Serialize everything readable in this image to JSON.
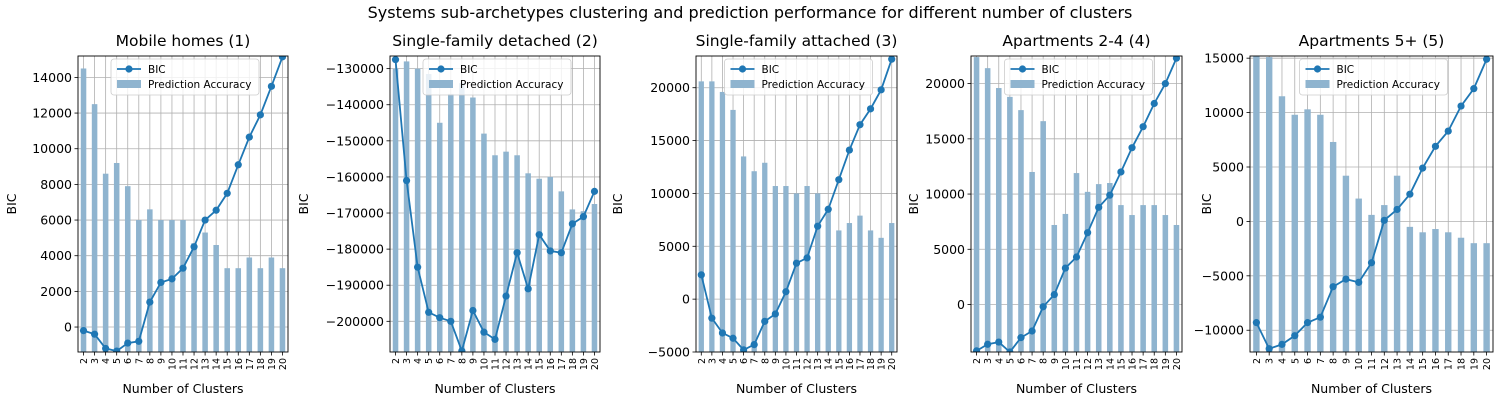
{
  "figure": {
    "suptitle": "Systems sub-archetypes clustering and prediction performance for different number of clusters"
  },
  "legend": {
    "line_label": "BIC",
    "bar_label": "Prediction Accuracy",
    "placement": "upper-center"
  },
  "colors": {
    "line": "#1f77b4",
    "bar": "#8fb4cf",
    "grid": "#b0b0b0"
  },
  "chart_data": [
    {
      "type": "bar+line",
      "title": "Mobile homes (1)",
      "xlabel": "Number of Clusters",
      "ylabel": "BIC",
      "categories": [
        "2",
        "3",
        "4",
        "5",
        "6",
        "7",
        "8",
        "9",
        "10",
        "11",
        "12",
        "13",
        "14",
        "15",
        "16",
        "17",
        "18",
        "19",
        "20"
      ],
      "ylim": [
        -1400,
        15200
      ],
      "yticks": [
        0,
        2000,
        4000,
        6000,
        8000,
        10000,
        12000,
        14000
      ],
      "ytick_labels": [
        "0",
        "2000",
        "4000",
        "6000",
        "8000",
        "10000",
        "12000",
        "14000"
      ],
      "grid": true,
      "series": [
        {
          "name": "BIC",
          "kind": "line",
          "values": [
            -200,
            -400,
            -1200,
            -1350,
            -900,
            -800,
            1400,
            2500,
            2700,
            3300,
            4500,
            6000,
            6550,
            7500,
            9100,
            10650,
            11900,
            13500,
            15150
          ]
        },
        {
          "name": "Prediction Accuracy",
          "kind": "bar",
          "values": [
            14500,
            12500,
            8600,
            9200,
            7900,
            6000,
            6600,
            6000,
            6000,
            6000,
            4700,
            5300,
            4600,
            3300,
            3300,
            3900,
            3300,
            3900,
            3300
          ]
        }
      ]
    },
    {
      "type": "bar+line",
      "title": "Single-family detached (2)",
      "xlabel": "Number of Clusters",
      "ylabel": "BIC",
      "categories": [
        "2",
        "3",
        "4",
        "5",
        "6",
        "7",
        "8",
        "9",
        "10",
        "11",
        "12",
        "13",
        "14",
        "15",
        "16",
        "17",
        "18",
        "19",
        "20"
      ],
      "ylim": [
        -208500,
        -126500
      ],
      "yticks": [
        -200000,
        -190000,
        -180000,
        -170000,
        -160000,
        -150000,
        -140000,
        -130000
      ],
      "ytick_labels": [
        "−200000",
        "−190000",
        "−180000",
        "−170000",
        "−160000",
        "−150000",
        "−140000",
        "−130000"
      ],
      "grid": true,
      "series": [
        {
          "name": "BIC",
          "kind": "line",
          "values": [
            -127500,
            -161000,
            -185000,
            -197500,
            -199000,
            -200000,
            -208200,
            -197000,
            -203000,
            -205000,
            -193000,
            -181000,
            -191000,
            -176000,
            -180500,
            -181000,
            -173000,
            -171000,
            -164000
          ]
        },
        {
          "name": "Prediction Accuracy",
          "kind": "bar",
          "values": [
            -130000,
            -128000,
            -130000,
            -131500,
            -145000,
            -137000,
            -134000,
            -138000,
            -148000,
            -154000,
            -153000,
            -154000,
            -159000,
            -160500,
            -160000,
            -164000,
            -169000,
            -169500,
            -167500
          ]
        }
      ]
    },
    {
      "type": "bar+line",
      "title": "Single-family attached (3)",
      "xlabel": "Number of Clusters",
      "ylabel": "BIC",
      "categories": [
        "2",
        "3",
        "4",
        "5",
        "6",
        "7",
        "8",
        "9",
        "10",
        "11",
        "12",
        "13",
        "14",
        "15",
        "16",
        "17",
        "18",
        "19",
        "20"
      ],
      "ylim": [
        -5000,
        23000
      ],
      "yticks": [
        -5000,
        0,
        5000,
        10000,
        15000,
        20000
      ],
      "ytick_labels": [
        "−5000",
        "0",
        "5000",
        "10000",
        "15000",
        "20000"
      ],
      "grid": true,
      "series": [
        {
          "name": "BIC",
          "kind": "line",
          "values": [
            2300,
            -1800,
            -3200,
            -3700,
            -4800,
            -4300,
            -2100,
            -1400,
            700,
            3400,
            3900,
            6900,
            8500,
            11300,
            14100,
            16500,
            18000,
            19800,
            22700
          ]
        },
        {
          "name": "Prediction Accuracy",
          "kind": "bar",
          "values": [
            20600,
            20600,
            19600,
            17900,
            13500,
            12100,
            12900,
            10700,
            10700,
            10000,
            10700,
            10000,
            8600,
            6500,
            7200,
            7900,
            6500,
            5800,
            7200
          ]
        }
      ]
    },
    {
      "type": "bar+line",
      "title": "Apartments 2-4 (4)",
      "xlabel": "Number of Clusters",
      "ylabel": "BIC",
      "categories": [
        "2",
        "3",
        "4",
        "5",
        "6",
        "7",
        "8",
        "9",
        "10",
        "11",
        "12",
        "13",
        "14",
        "15",
        "16",
        "17",
        "18",
        "19",
        "20"
      ],
      "ylim": [
        -4300,
        22500
      ],
      "yticks": [
        0,
        5000,
        10000,
        15000,
        20000
      ],
      "ytick_labels": [
        "0",
        "5000",
        "10000",
        "15000",
        "20000"
      ],
      "grid": true,
      "series": [
        {
          "name": "BIC",
          "kind": "line",
          "values": [
            -4200,
            -3600,
            -3400,
            -4300,
            -3000,
            -2400,
            -200,
            900,
            3300,
            4300,
            6500,
            8800,
            9900,
            12000,
            14200,
            16100,
            18200,
            20000,
            22300
          ]
        },
        {
          "name": "Prediction Accuracy",
          "kind": "bar",
          "values": [
            22400,
            21400,
            19600,
            18800,
            17600,
            12000,
            16600,
            7200,
            8200,
            11900,
            10200,
            10900,
            11000,
            9000,
            8100,
            9000,
            9000,
            8100,
            7200
          ]
        }
      ]
    },
    {
      "type": "bar+line",
      "title": "Apartments 5+ (5)",
      "xlabel": "Number of Clusters",
      "ylabel": "BIC",
      "categories": [
        "2",
        "3",
        "4",
        "5",
        "6",
        "7",
        "8",
        "9",
        "10",
        "11",
        "12",
        "13",
        "14",
        "15",
        "16",
        "17",
        "18",
        "19",
        "20"
      ],
      "ylim": [
        -12000,
        15200
      ],
      "yticks": [
        -10000,
        -5000,
        0,
        5000,
        10000,
        15000
      ],
      "ytick_labels": [
        "−10000",
        "−5000",
        "0",
        "5000",
        "10000",
        "15000"
      ],
      "grid": true,
      "series": [
        {
          "name": "BIC",
          "kind": "line",
          "values": [
            -9300,
            -11700,
            -11300,
            -10500,
            -9300,
            -8800,
            -6000,
            -5300,
            -5600,
            -3800,
            100,
            1100,
            2500,
            4900,
            6900,
            8300,
            10600,
            12200,
            14900
          ]
        },
        {
          "name": "Prediction Accuracy",
          "kind": "bar",
          "values": [
            15200,
            15100,
            11500,
            9800,
            10300,
            9800,
            7300,
            4200,
            2100,
            600,
            1500,
            4200,
            -500,
            -1000,
            -700,
            -1000,
            -1500,
            -2000,
            -2000
          ]
        }
      ]
    }
  ]
}
